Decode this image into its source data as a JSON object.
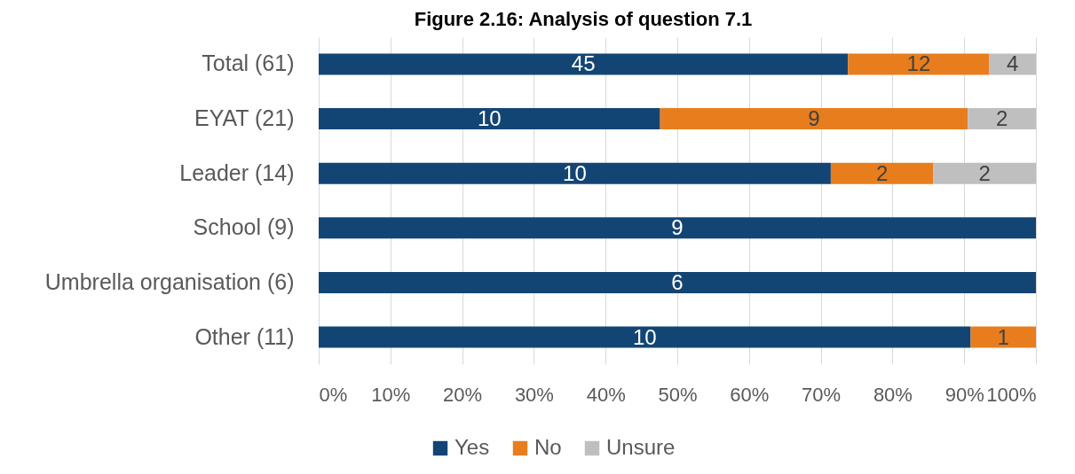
{
  "chart_data": {
    "type": "bar",
    "orientation": "horizontal",
    "stacked": true,
    "title": "Figure 2.16: Analysis of question 7.1",
    "categories": [
      "Total (61)",
      "EYAT (21)",
      "Leader (14)",
      "School (9)",
      "Umbrella organisation (6)",
      "Other (11)"
    ],
    "series": [
      {
        "name": "Yes",
        "color": "#134574",
        "values": [
          73.8,
          47.6,
          71.4,
          100,
          100,
          90.9
        ]
      },
      {
        "name": "No",
        "color": "#e87d1e",
        "values": [
          19.7,
          42.9,
          14.3,
          null,
          null,
          9.1
        ]
      },
      {
        "name": "Unsure",
        "color": "#bfbfbf",
        "values": [
          6.5,
          9.5,
          14.3,
          null,
          null,
          null
        ]
      }
    ],
    "annotations": [
      "45",
      "12",
      "4",
      "10",
      "9",
      "2",
      "10",
      "2",
      "2",
      "9",
      "6",
      "10",
      "1"
    ],
    "xlim": [
      0,
      100
    ],
    "xticks": [
      {
        "value": 0,
        "label": "0%"
      },
      {
        "value": 10,
        "label": "10%"
      },
      {
        "value": 20,
        "label": "20%"
      },
      {
        "value": 30,
        "label": "30%"
      },
      {
        "value": 40,
        "label": "40%"
      },
      {
        "value": 50,
        "label": "50%"
      },
      {
        "value": 60,
        "label": "60%"
      },
      {
        "value": 70,
        "label": "70%"
      },
      {
        "value": 80,
        "label": "80%"
      },
      {
        "value": 90,
        "label": "90%"
      },
      {
        "value": 100,
        "label": "100%"
      }
    ],
    "grid": "x",
    "legend": "bottom"
  }
}
